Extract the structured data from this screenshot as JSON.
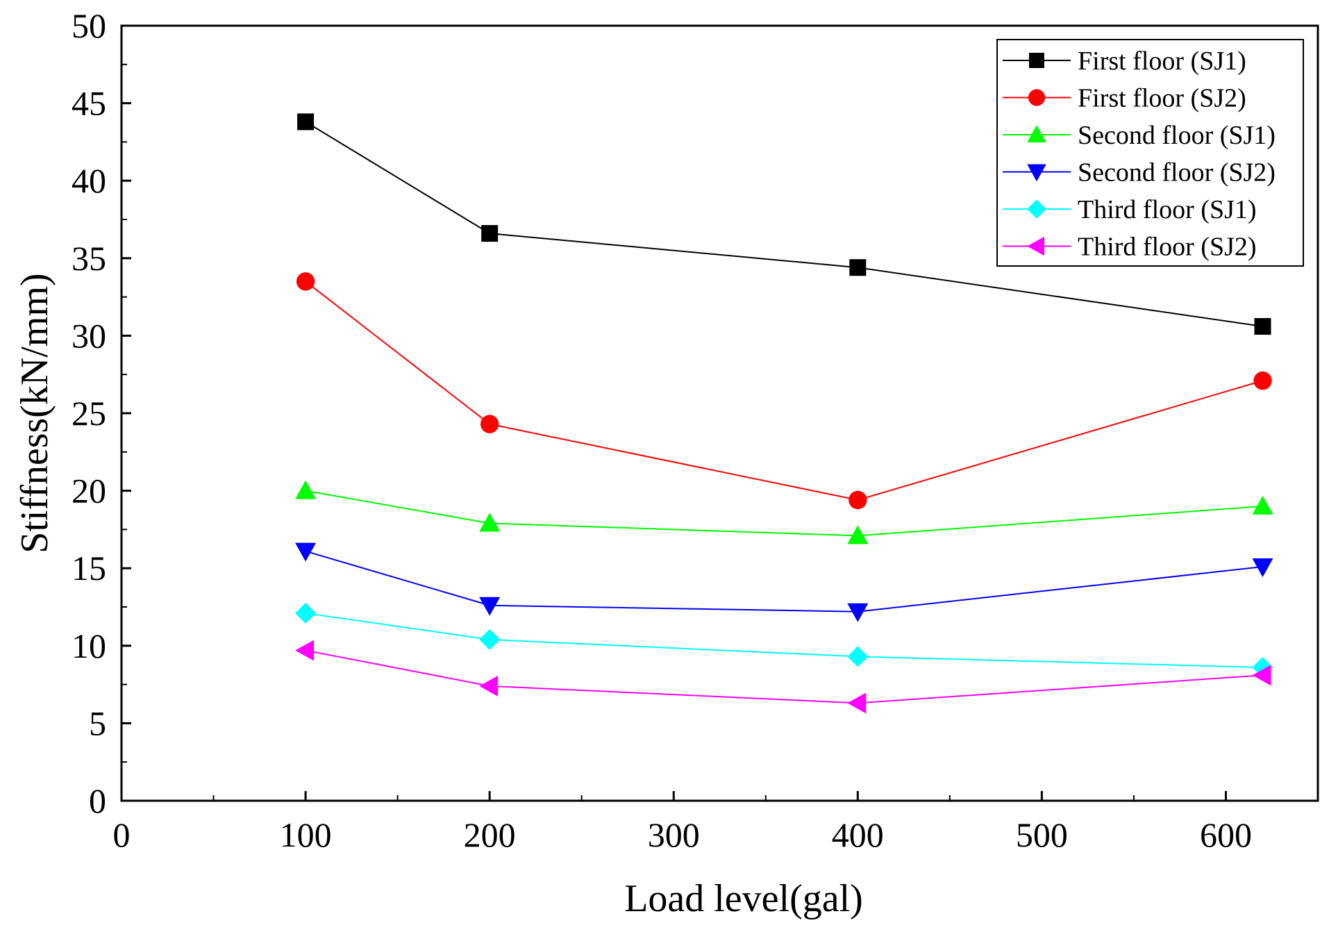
{
  "chart_data": {
    "type": "line",
    "title": "",
    "xlabel": "Load level(gal)",
    "ylabel": "Stiffness(kN/mm)",
    "xlim": [
      0,
      650
    ],
    "ylim": [
      0,
      50
    ],
    "xticks": [
      0,
      100,
      200,
      300,
      400,
      500,
      600
    ],
    "yticks": [
      0,
      5,
      10,
      15,
      20,
      25,
      30,
      35,
      40,
      45,
      50
    ],
    "grid": false,
    "legend_position": "top-right",
    "x": [
      100,
      200,
      400,
      620
    ],
    "series": [
      {
        "name": "First floor (SJ1)",
        "color": "#000000",
        "marker": "square",
        "values": [
          43.8,
          36.6,
          34.4,
          30.6
        ]
      },
      {
        "name": "First floor (SJ2)",
        "color": "#ff0000",
        "marker": "circle",
        "values": [
          33.5,
          24.3,
          19.4,
          27.1
        ]
      },
      {
        "name": "Second floor (SJ1)",
        "color": "#00ff00",
        "marker": "triangle-up",
        "values": [
          20.0,
          17.9,
          17.1,
          19.0
        ]
      },
      {
        "name": "Second floor (SJ2)",
        "color": "#0000ff",
        "marker": "triangle-down",
        "values": [
          16.1,
          12.6,
          12.2,
          15.1
        ]
      },
      {
        "name": "Third floor (SJ1)",
        "color": "#00ffff",
        "marker": "diamond",
        "values": [
          12.1,
          10.4,
          9.3,
          8.6
        ]
      },
      {
        "name": "Third floor (SJ2)",
        "color": "#ff00ff",
        "marker": "triangle-left",
        "values": [
          9.7,
          7.4,
          6.3,
          8.1
        ]
      }
    ]
  }
}
